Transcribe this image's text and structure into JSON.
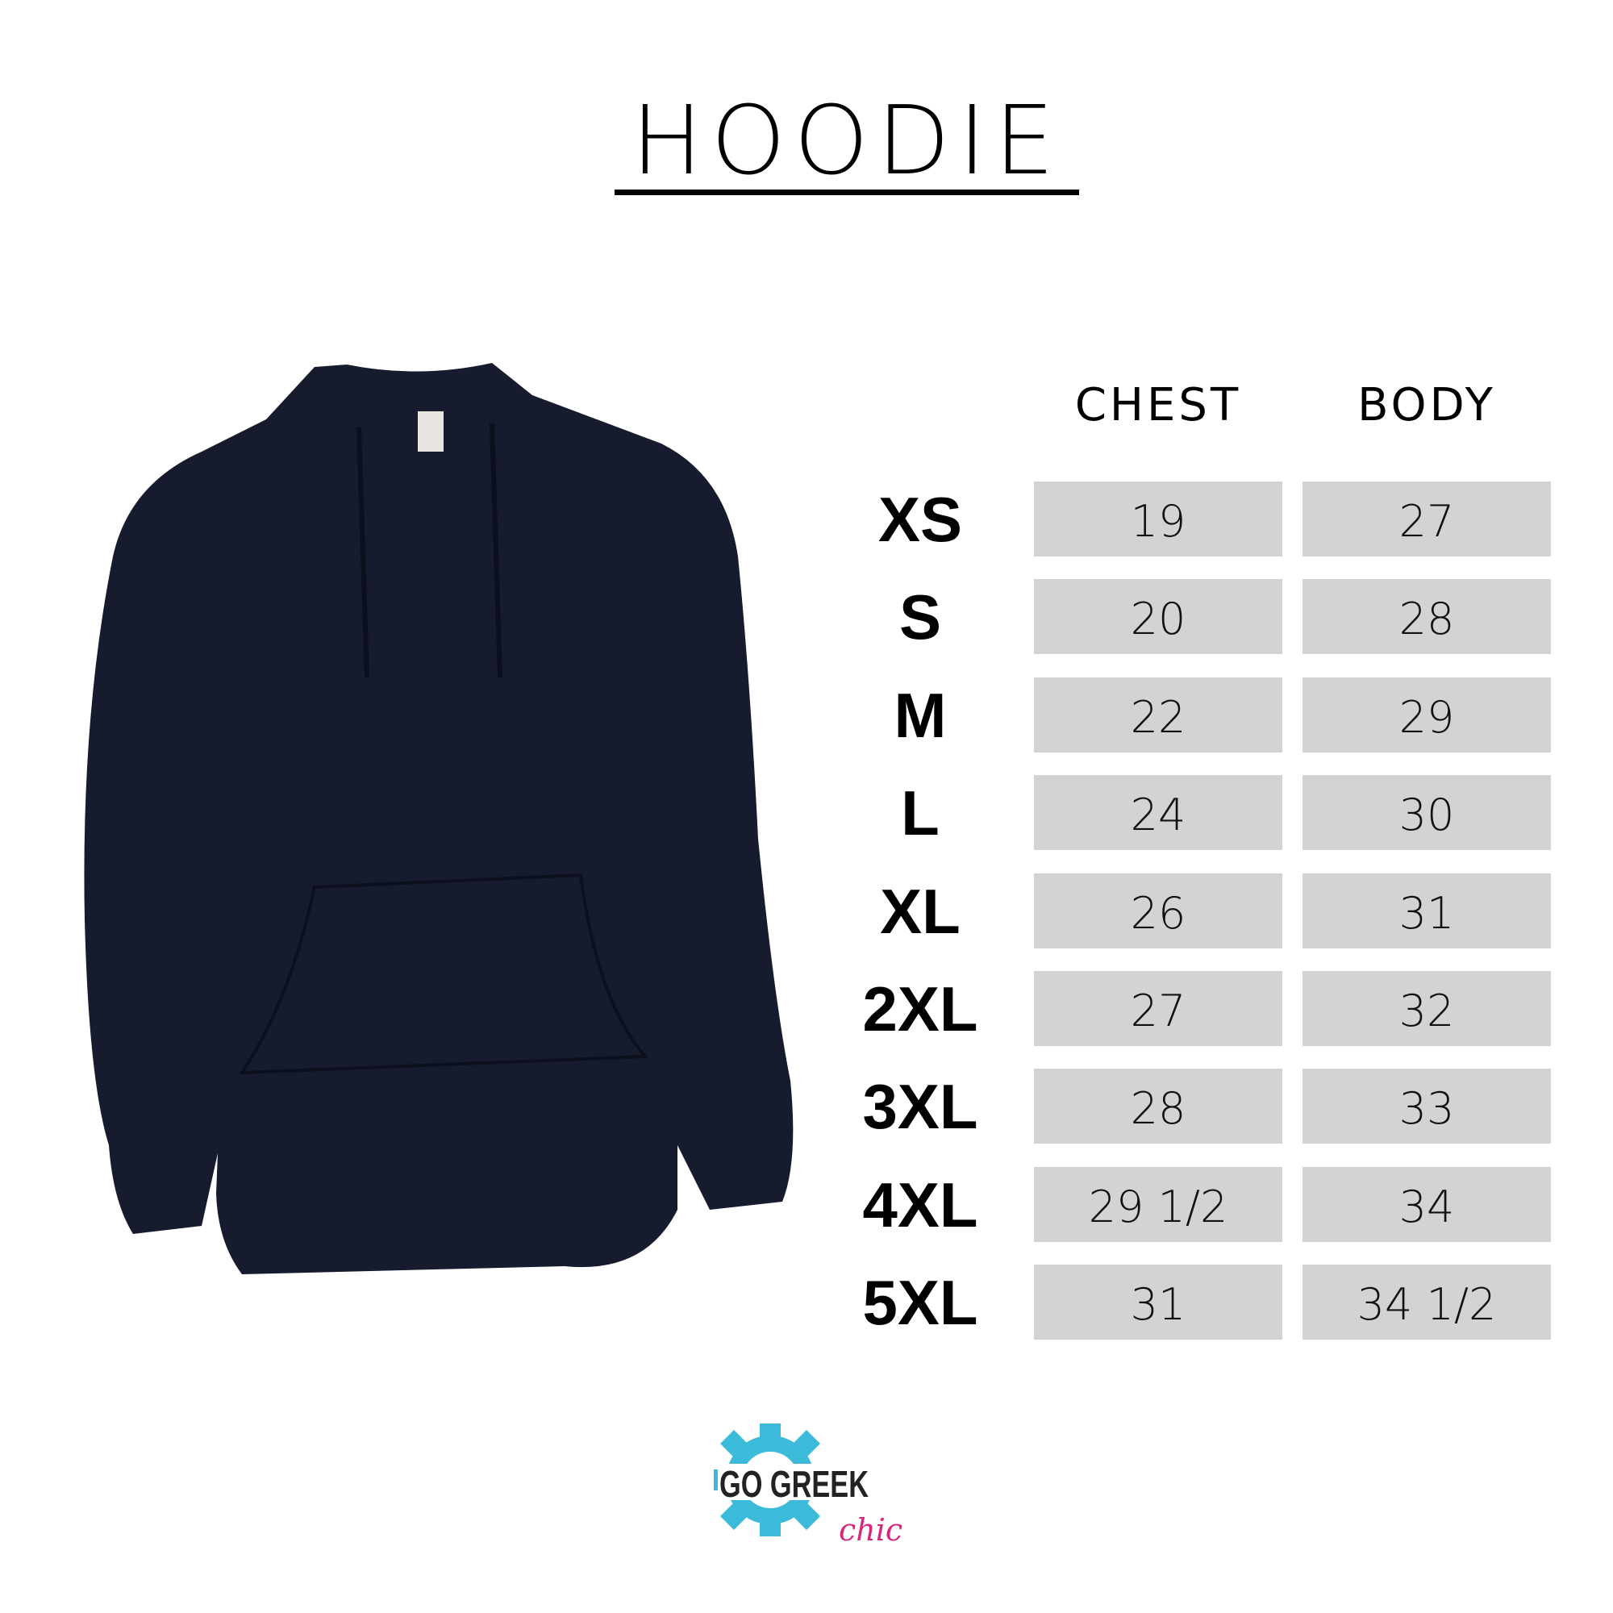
{
  "title": "HOODIE",
  "columns": [
    "CHEST",
    "BODY"
  ],
  "rows": [
    {
      "size": "XS",
      "chest": "19",
      "body": "27"
    },
    {
      "size": "S",
      "chest": "20",
      "body": "28"
    },
    {
      "size": "M",
      "chest": "22",
      "body": "29"
    },
    {
      "size": "L",
      "chest": "24",
      "body": "30"
    },
    {
      "size": "XL",
      "chest": "26",
      "body": "31"
    },
    {
      "size": "2XL",
      "chest": "27",
      "body": "32"
    },
    {
      "size": "3XL",
      "chest": "28",
      "body": "33"
    },
    {
      "size": "4XL",
      "chest": "29 1/2",
      "body": "34"
    },
    {
      "size": "5XL",
      "chest": "31",
      "body": "34 1/2"
    }
  ],
  "logo": {
    "text": "GO GREEK",
    "script": "chic",
    "colors": {
      "gear": "#3bbad9",
      "script": "#d6267e"
    }
  },
  "colors": {
    "cell_bg": "#d1d3d4",
    "hoodie": "#161b2d"
  }
}
